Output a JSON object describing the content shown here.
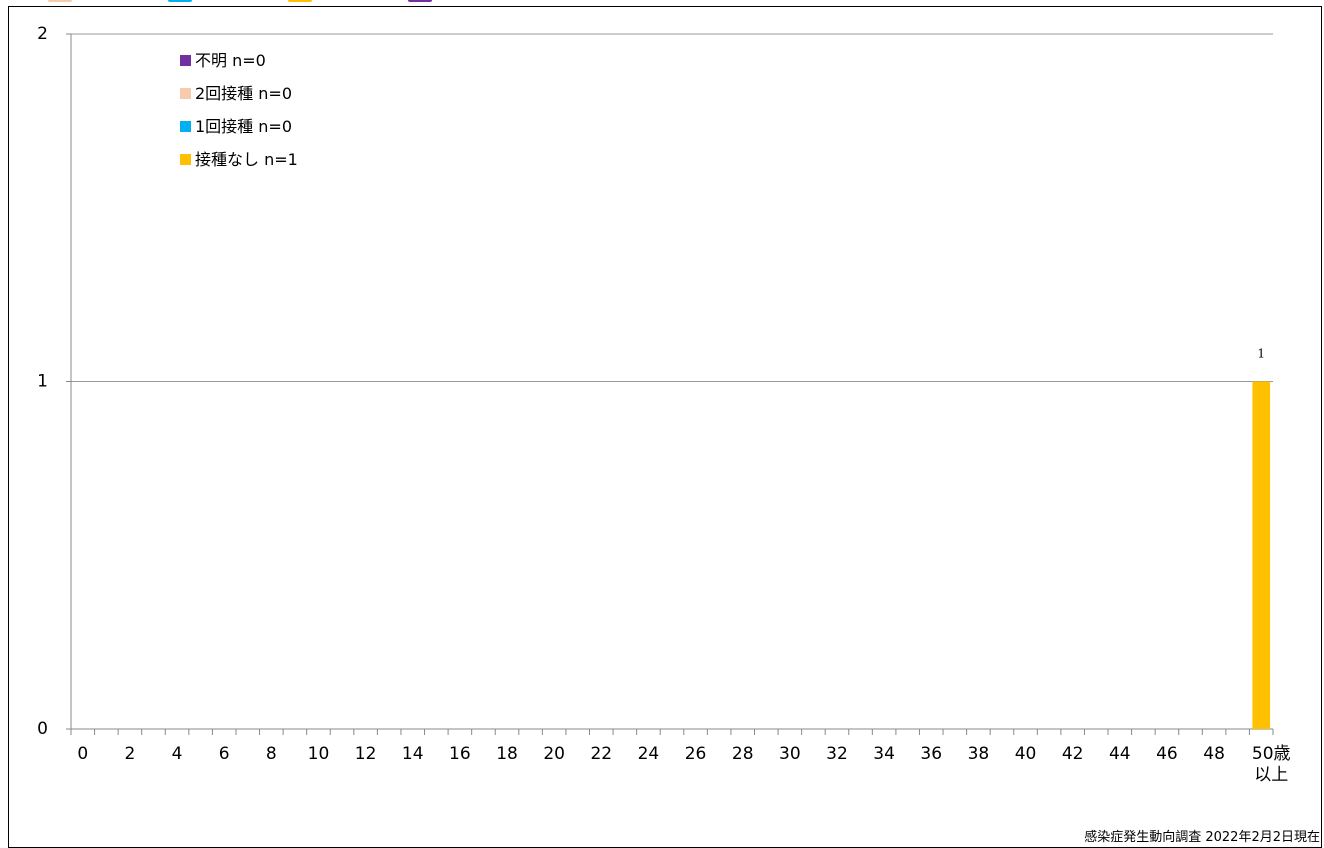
{
  "chart_data": {
    "type": "bar",
    "x_tick_labels": [
      "0",
      "2",
      "4",
      "6",
      "8",
      "10",
      "12",
      "14",
      "16",
      "18",
      "20",
      "22",
      "24",
      "26",
      "28",
      "30",
      "32",
      "34",
      "36",
      "38",
      "40",
      "42",
      "44",
      "46",
      "48"
    ],
    "last_category_label": [
      "50歳",
      "以上"
    ],
    "ylim": [
      0,
      2
    ],
    "y_ticks": [
      "0",
      "1",
      "2"
    ],
    "grid": true,
    "stacked": true,
    "legend_position": "top-left",
    "series": [
      {
        "name": "不明 n=0",
        "color": "#7030a0",
        "values_at_50plus": 0
      },
      {
        "name": "2回接種 n=0",
        "color": "#f8cbad",
        "values_at_50plus": 0
      },
      {
        "name": "1回接種 n=0",
        "color": "#00b0f0",
        "values_at_50plus": 0
      },
      {
        "name": "接種なし n=1",
        "color": "#ffc000",
        "values_at_50plus": 1
      }
    ],
    "data_labels": [
      {
        "category": "50歳以上",
        "value": "1"
      }
    ]
  },
  "footer": {
    "source": "感染症発生動向調査 2022年2月2日現在"
  }
}
